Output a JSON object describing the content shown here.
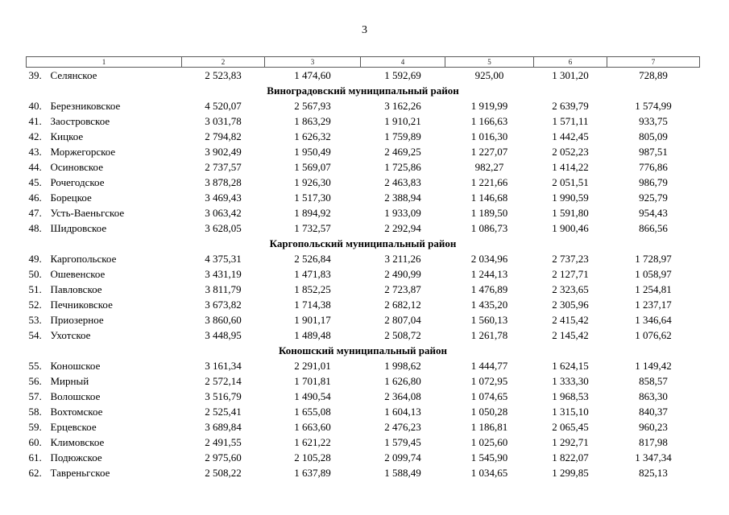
{
  "page": {
    "number": "3"
  },
  "colors": {
    "background": "#ffffff",
    "text": "#000000",
    "table_border": "#595959"
  },
  "table": {
    "column_headers": [
      "1",
      "2",
      "3",
      "4",
      "5",
      "6",
      "7"
    ],
    "sections": [
      {
        "header": null,
        "rows": [
          {
            "num": "39.",
            "name": "Селянское",
            "values": [
              "2 523,83",
              "1 474,60",
              "1 592,69",
              "925,00",
              "1 301,20",
              "728,89"
            ]
          }
        ]
      },
      {
        "header": "Виноградовский муниципальный район",
        "rows": [
          {
            "num": "40.",
            "name": "Березниковское",
            "values": [
              "4 520,07",
              "2 567,93",
              "3 162,26",
              "1 919,99",
              "2 639,79",
              "1 574,99"
            ]
          },
          {
            "num": "41.",
            "name": "Заостровское",
            "values": [
              "3 031,78",
              "1 863,29",
              "1 910,21",
              "1 166,63",
              "1 571,11",
              "933,75"
            ]
          },
          {
            "num": "42.",
            "name": "Кицкое",
            "values": [
              "2 794,82",
              "1 626,32",
              "1 759,89",
              "1 016,30",
              "1 442,45",
              "805,09"
            ]
          },
          {
            "num": "43.",
            "name": "Моржегорское",
            "values": [
              "3 902,49",
              "1 950,49",
              "2 469,25",
              "1 227,07",
              "2 052,23",
              "987,51"
            ]
          },
          {
            "num": "44.",
            "name": "Осиновское",
            "values": [
              "2 737,57",
              "1 569,07",
              "1 725,86",
              "982,27",
              "1 414,22",
              "776,86"
            ]
          },
          {
            "num": "45.",
            "name": "Рочегодское",
            "values": [
              "3 878,28",
              "1 926,30",
              "2 463,83",
              "1 221,66",
              "2 051,51",
              "986,79"
            ]
          },
          {
            "num": "46.",
            "name": "Борецкое",
            "values": [
              "3 469,43",
              "1 517,30",
              "2 388,94",
              "1 146,68",
              "1 990,59",
              "925,79"
            ]
          },
          {
            "num": "47.",
            "name": "Усть-Ваеньгское",
            "values": [
              "3 063,42",
              "1 894,92",
              "1 933,09",
              "1 189,50",
              "1 591,80",
              "954,43"
            ]
          },
          {
            "num": "48.",
            "name": "Шидровское",
            "values": [
              "3 628,05",
              "1 732,57",
              "2 292,94",
              "1 086,73",
              "1 900,46",
              "866,56"
            ]
          }
        ]
      },
      {
        "header": "Каргопольский муниципальный район",
        "rows": [
          {
            "num": "49.",
            "name": "Каргопольское",
            "values": [
              "4 375,31",
              "2 526,84",
              "3 211,26",
              "2 034,96",
              "2 737,23",
              "1 728,97"
            ]
          },
          {
            "num": "50.",
            "name": "Ошевенское",
            "values": [
              "3 431,19",
              "1 471,83",
              "2 490,99",
              "1 244,13",
              "2 127,71",
              "1 058,97"
            ]
          },
          {
            "num": "51.",
            "name": "Павловское",
            "values": [
              "3 811,79",
              "1 852,25",
              "2 723,87",
              "1 476,89",
              "2 323,65",
              "1 254,81"
            ]
          },
          {
            "num": "52.",
            "name": "Печниковское",
            "values": [
              "3 673,82",
              "1 714,38",
              "2 682,12",
              "1 435,20",
              "2 305,96",
              "1 237,17"
            ]
          },
          {
            "num": "53.",
            "name": "Приозерное",
            "values": [
              "3 860,60",
              "1 901,17",
              "2 807,04",
              "1 560,13",
              "2 415,42",
              "1 346,64"
            ]
          },
          {
            "num": "54.",
            "name": "Ухотское",
            "values": [
              "3 448,95",
              "1 489,48",
              "2 508,72",
              "1 261,78",
              "2 145,42",
              "1 076,62"
            ]
          }
        ]
      },
      {
        "header": "Коношский муниципальный район",
        "rows": [
          {
            "num": "55.",
            "name": "Коношское",
            "values": [
              "3 161,34",
              "2 291,01",
              "1 998,62",
              "1 444,77",
              "1 624,15",
              "1 149,42"
            ]
          },
          {
            "num": "56.",
            "name": "Мирный",
            "values": [
              "2 572,14",
              "1 701,81",
              "1 626,80",
              "1 072,95",
              "1 333,30",
              "858,57"
            ]
          },
          {
            "num": "57.",
            "name": "Волошское",
            "values": [
              "3 516,79",
              "1 490,54",
              "2 364,08",
              "1 074,65",
              "1 968,53",
              "863,30"
            ]
          },
          {
            "num": "58.",
            "name": "Вохтомское",
            "values": [
              "2 525,41",
              "1 655,08",
              "1 604,13",
              "1 050,28",
              "1 315,10",
              "840,37"
            ]
          },
          {
            "num": "59.",
            "name": "Ерцевское",
            "values": [
              "3 689,84",
              "1 663,60",
              "2 476,23",
              "1 186,81",
              "2 065,45",
              "960,23"
            ]
          },
          {
            "num": "60.",
            "name": "Климовское",
            "values": [
              "2 491,55",
              "1 621,22",
              "1 579,45",
              "1 025,60",
              "1 292,71",
              "817,98"
            ]
          },
          {
            "num": "61.",
            "name": "Подюжское",
            "values": [
              "2 975,60",
              "2 105,28",
              "2 099,74",
              "1 545,90",
              "1 822,07",
              "1 347,34"
            ]
          },
          {
            "num": "62.",
            "name": "Тавреньгское",
            "values": [
              "2 508,22",
              "1 637,89",
              "1 588,49",
              "1 034,65",
              "1 299,85",
              "825,13"
            ]
          }
        ]
      }
    ]
  }
}
